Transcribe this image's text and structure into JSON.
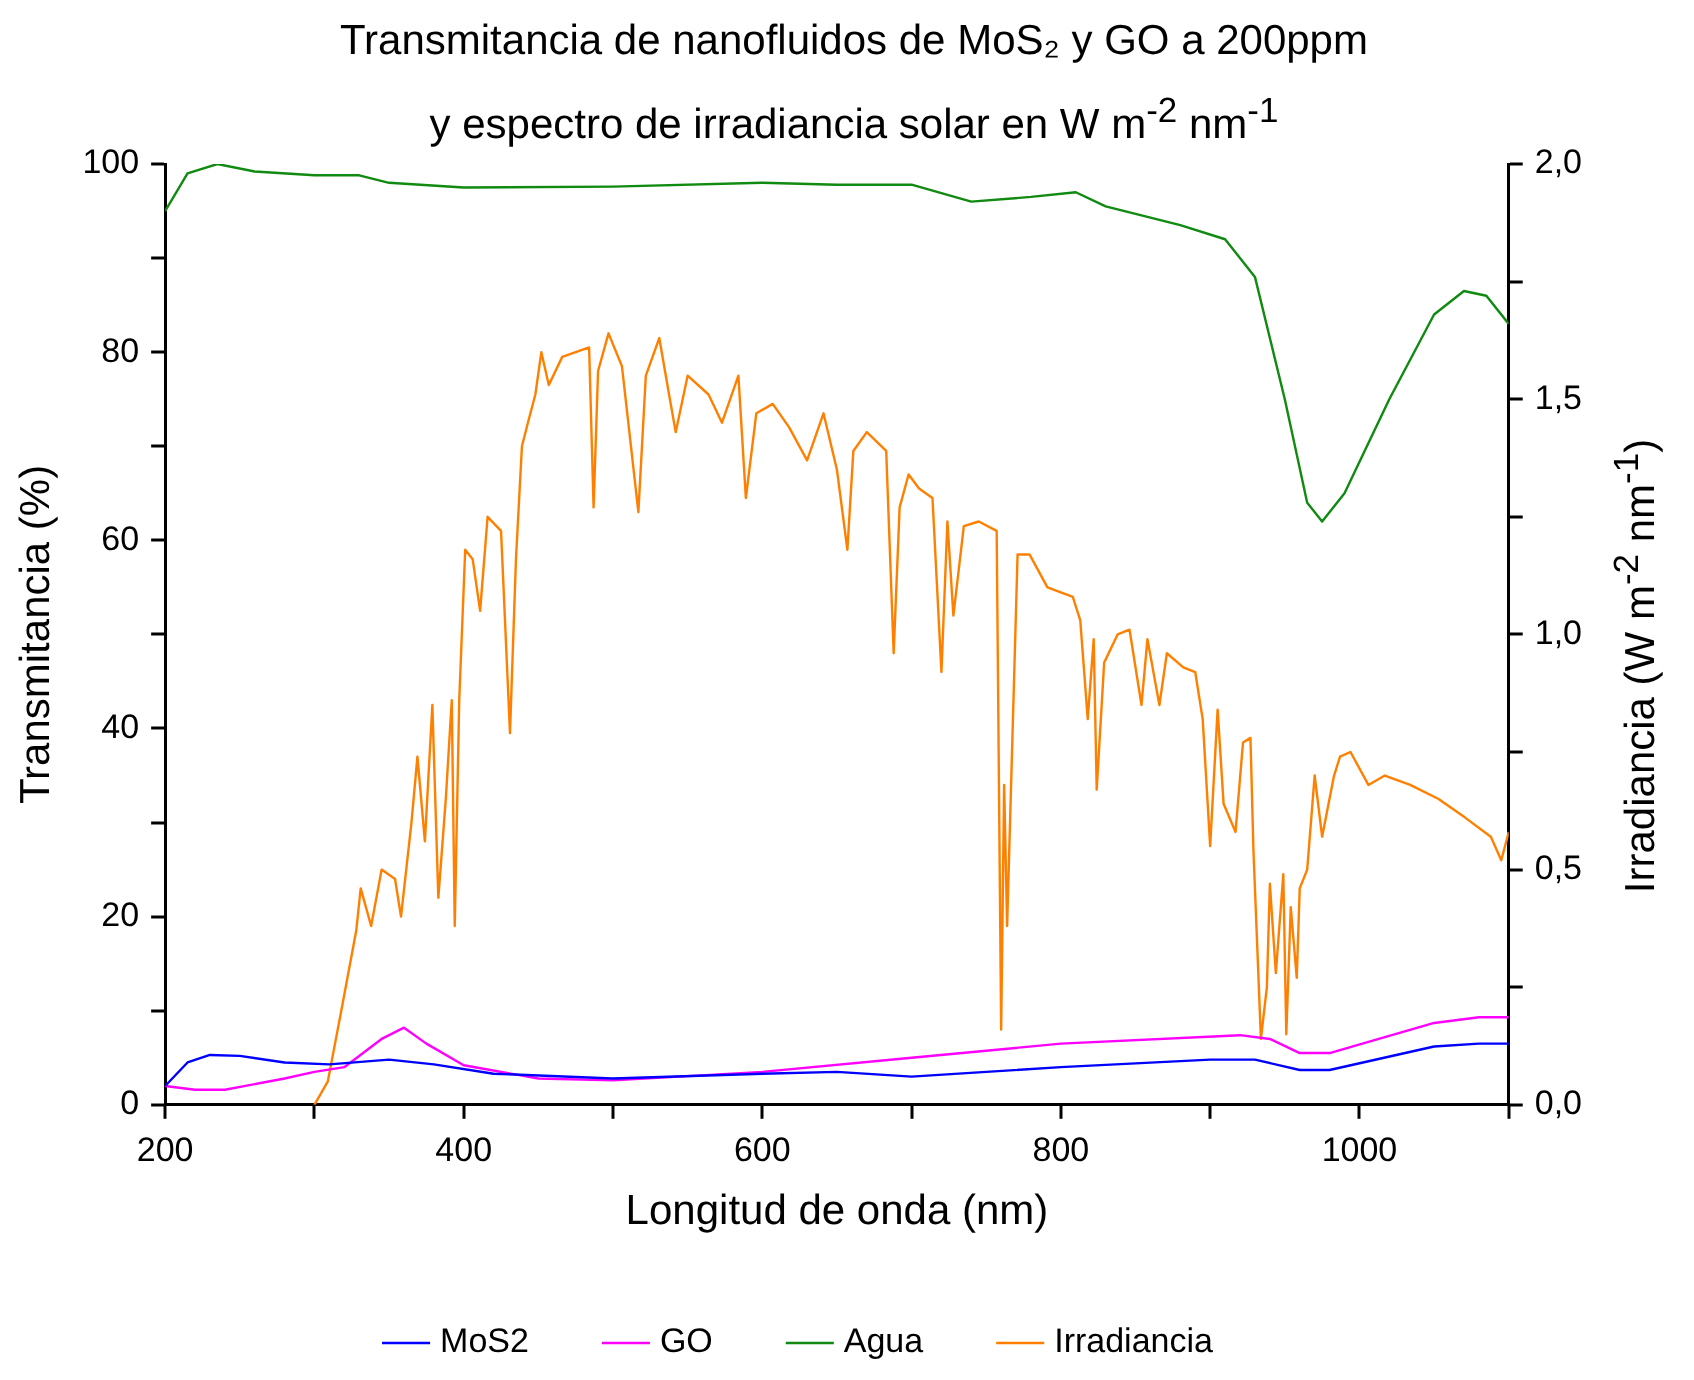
{
  "chart_data": {
    "type": "line",
    "title": "Transmitancia de nanofluidos de MoS₂ y GO a 200ppm\ny espectro de irradiancia solar en W m$^{-2}$ nm$^{-1}$",
    "xlabel": "Longitud de onda (nm)",
    "ylabel": "Transmitancia (%)",
    "y2label": "Irradiancia (W m$^{-2}$ nm$^{-1}$)",
    "xlim": [
      200,
      1100
    ],
    "xticks": [
      200,
      {
        "value": 300,
        "label": null
      },
      400,
      {
        "value": 500,
        "label": null
      },
      600,
      {
        "value": 700,
        "label": null
      },
      800,
      {
        "value": 900,
        "label": null
      },
      1000,
      {
        "value": 1100,
        "label": null
      }
    ],
    "ylim": [
      0,
      100
    ],
    "yticks": [
      0,
      {
        "value": 10,
        "label": null
      },
      20,
      {
        "value": 30,
        "label": null
      },
      40,
      {
        "value": 50,
        "label": null
      },
      60,
      {
        "value": 70,
        "label": null
      },
      80,
      {
        "value": 90,
        "label": null
      },
      100
    ],
    "y2lim": [
      0,
      2
    ],
    "y2ticks": [
      {
        "value": 0,
        "label": "0,0"
      },
      {
        "value": 0.25,
        "label": null
      },
      {
        "value": 0.5,
        "label": "0,5"
      },
      {
        "value": 0.75,
        "label": null
      },
      {
        "value": 1,
        "label": "1,0"
      },
      {
        "value": 1.25,
        "label": null
      },
      {
        "value": 1.5,
        "label": "1,5"
      },
      {
        "value": 1.75,
        "label": null
      },
      {
        "value": 2,
        "label": "2,0"
      }
    ],
    "grid": false,
    "legend": "bottom",
    "marker": "none",
    "line_style": "solid",
    "series": [
      {
        "name": "MoS2",
        "color": "#0000ff",
        "x": [
          200,
          215,
          230,
          250,
          280,
          310,
          350,
          380,
          420,
          500,
          600,
          650,
          700,
          750,
          800,
          900,
          930,
          960,
          980,
          1050,
          1080,
          1100
        ],
        "values": [
          2,
          4.5,
          5.3,
          5.2,
          4.5,
          4.3,
          4.8,
          4.3,
          3.3,
          2.8,
          3.3,
          3.5,
          3.0,
          3.5,
          4,
          4.8,
          4.8,
          3.7,
          3.7,
          6.2,
          6.5,
          6.5
        ]
      },
      {
        "name": "GO",
        "color": "#ff00ff",
        "x": [
          200,
          220,
          240,
          280,
          300,
          320,
          345,
          360,
          375,
          400,
          450,
          500,
          600,
          700,
          800,
          920,
          940,
          960,
          980,
          1050,
          1080,
          1100
        ],
        "values": [
          2,
          1.6,
          1.6,
          2.8,
          3.5,
          4.0,
          7,
          8.2,
          6.5,
          4.2,
          2.8,
          2.6,
          3.5,
          5,
          6.5,
          7.4,
          7,
          5.5,
          5.5,
          8.7,
          9.3,
          9.3
        ]
      },
      {
        "name": "Agua",
        "color": "#108a10",
        "x": [
          200,
          215,
          235,
          260,
          300,
          330,
          350,
          400,
          500,
          600,
          650,
          700,
          740,
          780,
          810,
          830,
          880,
          910,
          930,
          950,
          965,
          975,
          990,
          1020,
          1050,
          1070,
          1085,
          1100
        ],
        "values": [
          95,
          99,
          100,
          99.2,
          98.8,
          98.8,
          98,
          97.5,
          97.6,
          98,
          97.8,
          97.8,
          96,
          96.5,
          97,
          95.5,
          93.5,
          92,
          88,
          75,
          64,
          62,
          65,
          75,
          84,
          86.5,
          86,
          83
        ]
      },
      {
        "name": "Irradiancia",
        "color": "#ff8000",
        "axis": "y2",
        "x": [
          300,
          309,
          318,
          328,
          331,
          338,
          345,
          354,
          358,
          365,
          369,
          374,
          379,
          383,
          388,
          392,
          394,
          397,
          401,
          406,
          411,
          416,
          425,
          431,
          435,
          439,
          443,
          448,
          452,
          457,
          466,
          475,
          484,
          487,
          490,
          497,
          506,
          517,
          522,
          531,
          537,
          542,
          550,
          564,
          573,
          584,
          589,
          596,
          607,
          618,
          630,
          641,
          650,
          657,
          661,
          670,
          683,
          688,
          692,
          698,
          705,
          714,
          720,
          724,
          728,
          735,
          745,
          757,
          760,
          762,
          764,
          771,
          779,
          791,
          808,
          813,
          818,
          822,
          824,
          829,
          838,
          846,
          854,
          858,
          866,
          871,
          882,
          890,
          895,
          900,
          905,
          909,
          917,
          922,
          927,
          929,
          934,
          938,
          940,
          944,
          949,
          951,
          954,
          958,
          960,
          965,
          970,
          975,
          983,
          987,
          994,
          1006,
          1017,
          1034,
          1053,
          1071,
          1088,
          1095,
          1100
        ],
        "values": [
          0,
          0.05,
          0.2,
          0.37,
          0.46,
          0.38,
          0.5,
          0.48,
          0.4,
          0.6,
          0.74,
          0.56,
          0.85,
          0.44,
          0.65,
          0.86,
          0.38,
          0.86,
          1.18,
          1.16,
          1.05,
          1.25,
          1.22,
          0.79,
          1.16,
          1.4,
          1.45,
          1.51,
          1.6,
          1.53,
          1.59,
          1.6,
          1.61,
          1.27,
          1.56,
          1.64,
          1.57,
          1.26,
          1.55,
          1.63,
          1.52,
          1.43,
          1.55,
          1.51,
          1.45,
          1.55,
          1.29,
          1.47,
          1.49,
          1.44,
          1.37,
          1.47,
          1.35,
          1.18,
          1.39,
          1.43,
          1.39,
          0.96,
          1.27,
          1.34,
          1.31,
          1.29,
          0.92,
          1.24,
          1.04,
          1.23,
          1.24,
          1.22,
          0.16,
          0.68,
          0.38,
          1.17,
          1.17,
          1.1,
          1.08,
          1.03,
          0.82,
          0.99,
          0.67,
          0.94,
          1,
          1.01,
          0.85,
          0.99,
          0.85,
          0.96,
          0.93,
          0.92,
          0.82,
          0.55,
          0.84,
          0.64,
          0.58,
          0.77,
          0.78,
          0.54,
          0.14,
          0.25,
          0.47,
          0.28,
          0.49,
          0.15,
          0.42,
          0.27,
          0.46,
          0.5,
          0.7,
          0.57,
          0.7,
          0.74,
          0.75,
          0.68,
          0.7,
          0.68,
          0.65,
          0.61,
          0.57,
          0.52,
          0.58
        ]
      }
    ]
  }
}
